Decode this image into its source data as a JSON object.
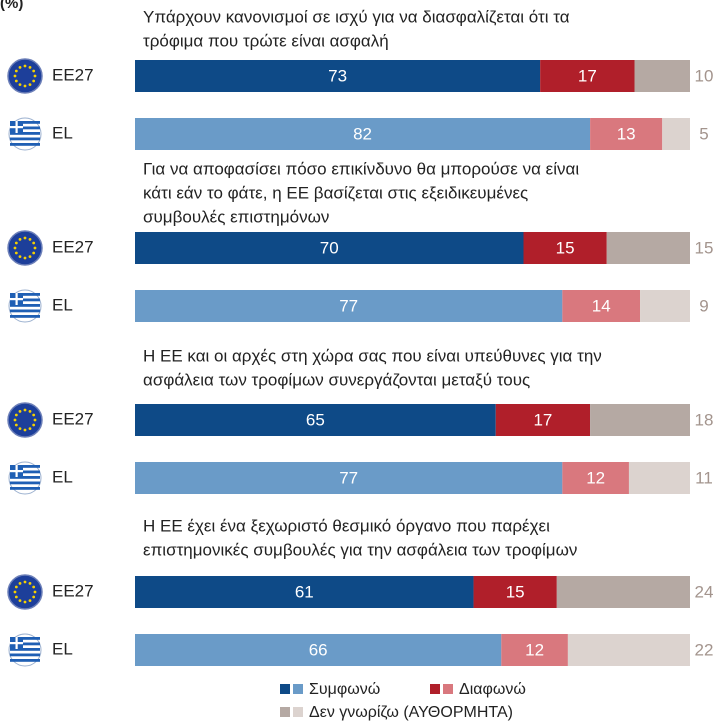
{
  "chart_data": {
    "type": "bar",
    "orientation": "horizontal",
    "stacked": true,
    "unit_label": "(%)",
    "xlim": [
      0,
      100
    ],
    "series": [
      {
        "name": "Συμφωνώ",
        "colors": [
          "#0e4a87",
          "#6a9bc8"
        ]
      },
      {
        "name": "Διαφωνώ",
        "colors": [
          "#b01f2a",
          "#d9787e"
        ]
      },
      {
        "name": "Δεν γνωρίζω (ΑΥΘΟΡΜΗΤΑ)",
        "colors": [
          "#b5a9a3",
          "#dcd3cf"
        ]
      }
    ],
    "groups": [
      {
        "title_lines": [
          "Υπάρχουν κανονισμοί σε ισχύ για να διασφαλίζεται ότι τα",
          "τρόφιμα που τρώτε είναι ασφαλή"
        ],
        "rows": [
          {
            "label": "EE27",
            "values": [
              73,
              17,
              10
            ]
          },
          {
            "label": "EL",
            "values": [
              82,
              13,
              5
            ]
          }
        ]
      },
      {
        "title_lines": [
          "Για να αποφασίσει πόσο επικίνδυνο θα μπορούσε να είναι",
          "κάτι εάν το φάτε, η ΕΕ βασίζεται στις εξειδικευμένες",
          "συμβουλές επιστημόνων"
        ],
        "rows": [
          {
            "label": "EE27",
            "values": [
              70,
              15,
              15
            ]
          },
          {
            "label": "EL",
            "values": [
              77,
              14,
              9
            ]
          }
        ]
      },
      {
        "title_lines": [
          "Η ΕΕ και οι αρχές στη χώρα σας που είναι υπεύθυνες για την",
          "ασφάλεια των τροφίμων συνεργάζονται μεταξύ τους"
        ],
        "rows": [
          {
            "label": "EE27",
            "values": [
              65,
              17,
              18
            ]
          },
          {
            "label": "EL",
            "values": [
              77,
              12,
              11
            ]
          }
        ]
      },
      {
        "title_lines": [
          "Η ΕΕ έχει ένα ξεχωριστό θεσμικό όργανο που παρέχει",
          "επιστημονικές συμβουλές για την ασφάλεια των τροφίμων"
        ],
        "rows": [
          {
            "label": "EE27",
            "values": [
              61,
              15,
              24
            ]
          },
          {
            "label": "EL",
            "values": [
              66,
              12,
              22
            ]
          }
        ]
      }
    ]
  }
}
